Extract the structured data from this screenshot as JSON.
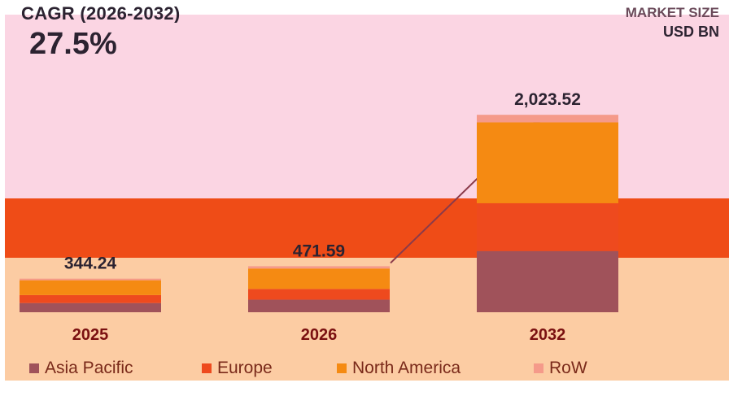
{
  "header": {
    "cagr_label": "CAGR (2026-2032)",
    "cagr_value": "27.5%",
    "market_size_label": "MARKET SIZE",
    "unit_label": "USD BN"
  },
  "colors": {
    "asia_pacific": "#a0525a",
    "europe": "#ee4a1e",
    "north_america": "#f58a12",
    "row": "#f59a8a",
    "total_label": "#2c2331",
    "axis_label": "#7a1010"
  },
  "chart_data": {
    "type": "bar",
    "stacked": true,
    "categories": [
      "2025",
      "2026",
      "2032"
    ],
    "totals": [
      344.24,
      471.59,
      2023.52
    ],
    "total_labels": [
      "344.24",
      "471.59",
      "2,023.52"
    ],
    "series": [
      {
        "name": "Asia Pacific",
        "values": [
          94.5,
          128.9,
          627.3
        ]
      },
      {
        "name": "Europe",
        "values": [
          81.3,
          110.4,
          489.8
        ]
      },
      {
        "name": "North America",
        "values": [
          152.1,
          208.7,
          829.1
        ]
      },
      {
        "name": "RoW",
        "values": [
          16.34,
          23.59,
          77.32
        ]
      }
    ],
    "ylim": [
      0,
      2200
    ],
    "grid": false,
    "legend_position": "bottom"
  }
}
